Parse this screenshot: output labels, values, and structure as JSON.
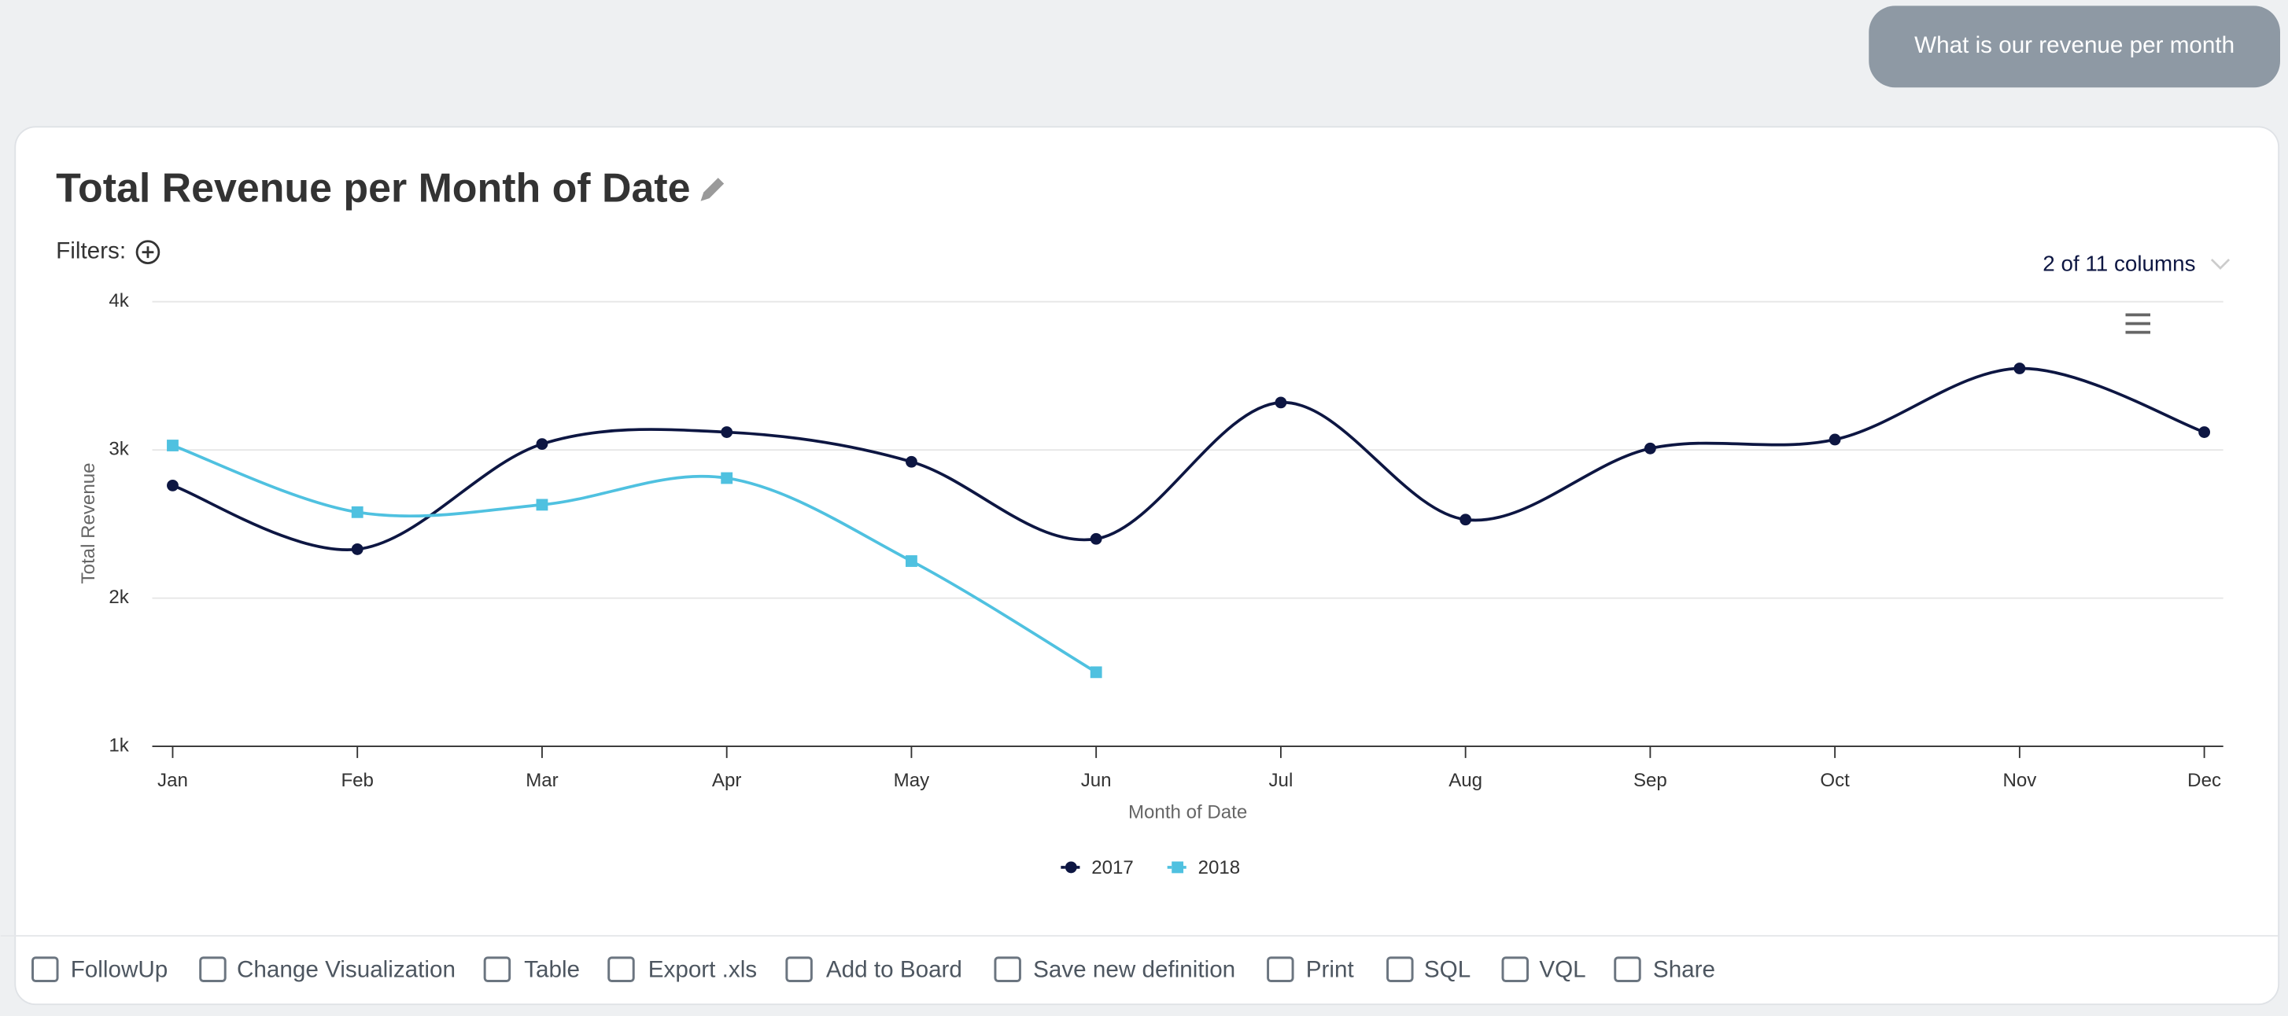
{
  "chat": {
    "message": "What is our revenue per month"
  },
  "card": {
    "filters_label": "Filters:",
    "columns_label": "2 of 11 columns"
  },
  "chart_data": {
    "type": "line",
    "title": "Total Revenue per Month of Date",
    "xlabel": "Month of Date",
    "ylabel": "Total Revenue",
    "categories": [
      "Jan",
      "Feb",
      "Mar",
      "Apr",
      "May",
      "Jun",
      "Jul",
      "Aug",
      "Sep",
      "Oct",
      "Nov",
      "Dec"
    ],
    "series": [
      {
        "name": "2017",
        "color": "#0d1642",
        "marker": "circle",
        "values": [
          2760,
          2330,
          3040,
          3120,
          2920,
          2400,
          3320,
          2530,
          3010,
          3070,
          3550,
          3120
        ]
      },
      {
        "name": "2018",
        "color": "#4fc1e0",
        "marker": "square",
        "values": [
          3030,
          2580,
          2630,
          2810,
          2250,
          1500,
          null,
          null,
          null,
          null,
          null,
          null
        ]
      }
    ],
    "ylim": [
      1000,
      4000
    ],
    "yticks": [
      {
        "value": 1000,
        "label": "1k"
      },
      {
        "value": 2000,
        "label": "2k"
      },
      {
        "value": 3000,
        "label": "3k"
      },
      {
        "value": 4000,
        "label": "4k"
      }
    ],
    "grid": true,
    "smooth": true,
    "legend": "bottom"
  },
  "toolbar": {
    "items": [
      "FollowUp",
      "Change Visualization",
      "Table",
      "Export .xls",
      "Add to Board",
      "Save new definition",
      "Print",
      "SQL",
      "VQL",
      "Share"
    ]
  }
}
